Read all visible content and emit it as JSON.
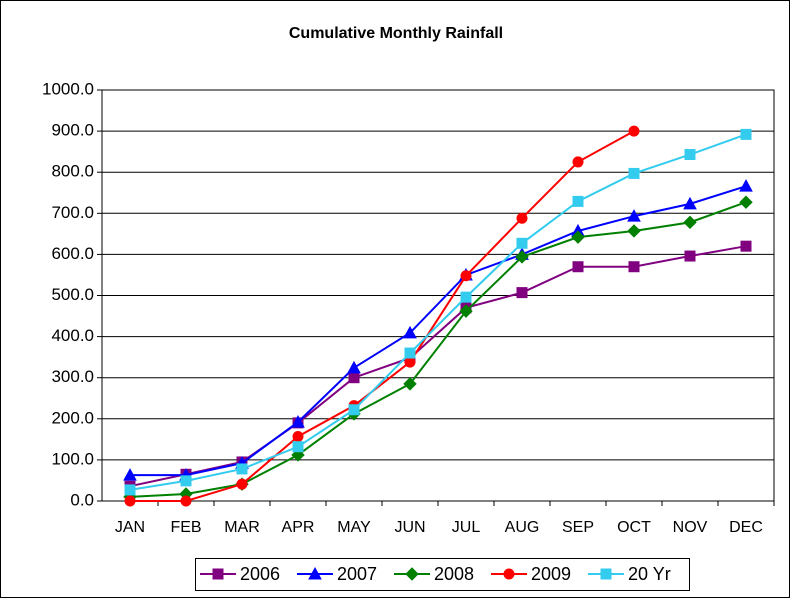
{
  "chart_data": {
    "type": "line",
    "title": "Cumulative Monthly Rainfall",
    "categories": [
      "JAN",
      "FEB",
      "MAR",
      "APR",
      "MAY",
      "JUN",
      "JUL",
      "AUG",
      "SEP",
      "OCT",
      "NOV",
      "DEC"
    ],
    "series": [
      {
        "name": "2006",
        "color": "#800080",
        "marker": "square",
        "values": [
          36,
          65,
          95,
          190,
          300,
          348,
          470,
          507,
          570,
          570,
          596,
          620
        ]
      },
      {
        "name": "2007",
        "color": "#0000ff",
        "marker": "triangle",
        "values": [
          63,
          63,
          92,
          192,
          324,
          409,
          550,
          600,
          657,
          693,
          723,
          766
        ]
      },
      {
        "name": "2008",
        "color": "#008000",
        "marker": "diamond",
        "values": [
          10,
          17,
          41,
          112,
          212,
          285,
          462,
          594,
          642,
          657,
          678,
          727
        ]
      },
      {
        "name": "2009",
        "color": "#ff0000",
        "marker": "circle",
        "values": [
          0,
          0,
          41,
          157,
          232,
          338,
          548,
          688,
          825,
          900,
          null,
          null
        ]
      },
      {
        "name": "20 Yr",
        "color": "#33ccee",
        "marker": "square",
        "values": [
          27,
          49,
          78,
          132,
          222,
          360,
          496,
          627,
          729,
          797,
          843,
          892
        ]
      }
    ],
    "ylim": [
      0,
      1000
    ],
    "yticks": [
      {
        "value": 0,
        "label": "0.0"
      },
      {
        "value": 100,
        "label": "100.0"
      },
      {
        "value": 200,
        "label": "200.0"
      },
      {
        "value": 300,
        "label": "300.0"
      },
      {
        "value": 400,
        "label": "400.0"
      },
      {
        "value": 500,
        "label": "500.0"
      },
      {
        "value": 600,
        "label": "600.0"
      },
      {
        "value": 700,
        "label": "700.0"
      },
      {
        "value": 800,
        "label": "800.0"
      },
      {
        "value": 900,
        "label": "900.0"
      },
      {
        "value": 1000,
        "label": "1000.0"
      }
    ],
    "grid": true,
    "legend": "bottom"
  }
}
